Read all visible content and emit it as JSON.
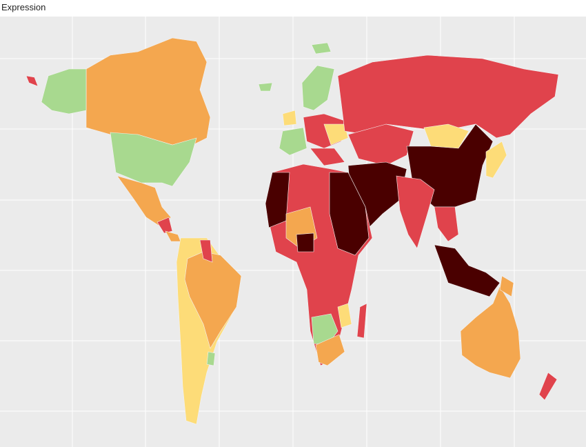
{
  "title": "Expression"
}
